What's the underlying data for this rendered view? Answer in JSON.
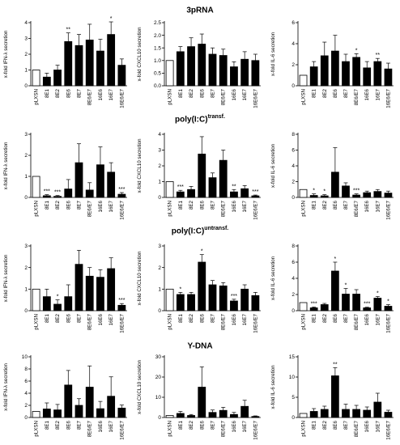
{
  "row_titles": [
    {
      "main": "3pRNA",
      "sup": ""
    },
    {
      "main": "poly(I:C)",
      "sup": "transf."
    },
    {
      "main": "poly(I:C)",
      "sup": "untransf."
    },
    {
      "main": "Y-DNA",
      "sup": ""
    }
  ],
  "chart_data": [
    {
      "type": "bar",
      "ylabel": "x-fold IFN-λ secretion",
      "categories": [
        "pLXSN",
        "8E1",
        "8E2",
        "8E6",
        "8E7",
        "8E6/E7",
        "16E6",
        "16E7",
        "16E6/E7"
      ],
      "values": [
        1.0,
        0.55,
        1.0,
        2.8,
        2.55,
        2.9,
        2.2,
        3.25,
        1.3
      ],
      "errors": [
        0,
        0.25,
        0.3,
        0.55,
        0.7,
        1.0,
        0.75,
        0.8,
        0.4
      ],
      "stars": [
        "",
        "",
        "",
        "**",
        "",
        "",
        "",
        "*",
        ""
      ],
      "ylim": [
        0,
        4
      ],
      "yticks": [
        0,
        1,
        2,
        3,
        4
      ]
    },
    {
      "type": "bar",
      "ylabel": "x-fold CXCL10 secretion",
      "categories": [
        "pLXSN",
        "8E1",
        "8E2",
        "8E6",
        "8E7",
        "8E6/E7",
        "16E6",
        "16E7",
        "16E6/E7"
      ],
      "values": [
        1.0,
        1.35,
        1.55,
        1.65,
        1.25,
        1.2,
        0.75,
        1.05,
        1.0
      ],
      "errors": [
        0,
        0.2,
        0.35,
        0.4,
        0.25,
        0.25,
        0.2,
        0.3,
        0.25
      ],
      "stars": [
        "",
        "",
        "",
        "",
        "",
        "",
        "",
        "",
        ""
      ],
      "ylim": [
        0,
        2.5
      ],
      "yticks": [
        0,
        0.5,
        1.0,
        1.5,
        2.0,
        2.5
      ]
    },
    {
      "type": "bar",
      "ylabel": "x-fold IL-6 secretion",
      "categories": [
        "pLXSN",
        "8E1",
        "8E2",
        "8E6",
        "8E7",
        "8E6/E7",
        "16E6",
        "16E7",
        "16E6/E7"
      ],
      "values": [
        1.0,
        1.8,
        2.85,
        3.3,
        2.3,
        2.7,
        1.7,
        2.3,
        1.6
      ],
      "errors": [
        0,
        0.5,
        1.3,
        1.5,
        0.7,
        0.35,
        0.6,
        0.3,
        0.55
      ],
      "stars": [
        "",
        "",
        "",
        "",
        "",
        "*",
        "",
        "**",
        ""
      ],
      "ylim": [
        0,
        6
      ],
      "yticks": [
        0,
        2,
        4,
        6
      ]
    },
    {
      "type": "bar",
      "ylabel": "x-fold IFN-λ secretion",
      "categories": [
        "pLXSN",
        "8E1",
        "8E2",
        "8E6",
        "8E7",
        "8E6/E7",
        "16E6",
        "16E7",
        "16E6/E7"
      ],
      "values": [
        1.0,
        0.08,
        0.05,
        0.4,
        1.65,
        0.35,
        1.55,
        1.2,
        0.15
      ],
      "errors": [
        0,
        0.05,
        0.04,
        0.45,
        0.9,
        0.35,
        0.85,
        0.45,
        0.08
      ],
      "stars": [
        "",
        "***",
        "***",
        "",
        "",
        "",
        "",
        "",
        "***"
      ],
      "ylim": [
        0,
        3
      ],
      "yticks": [
        0,
        1,
        2,
        3
      ]
    },
    {
      "type": "bar",
      "ylabel": "x-fold CXCL10 secretion",
      "categories": [
        "pLXSN",
        "8E1",
        "8E2",
        "8E6",
        "8E7",
        "8E6/E7",
        "16E6",
        "16E7",
        "16E6/E7"
      ],
      "values": [
        1.0,
        0.35,
        0.5,
        2.75,
        1.25,
        2.35,
        0.35,
        0.55,
        0.1
      ],
      "errors": [
        0,
        0.1,
        0.2,
        1.1,
        0.3,
        0.65,
        0.15,
        0.2,
        0.05
      ],
      "stars": [
        "",
        "***",
        "",
        "",
        "",
        "",
        "**",
        "",
        "***"
      ],
      "ylim": [
        0,
        4
      ],
      "yticks": [
        0,
        1,
        2,
        3,
        4
      ]
    },
    {
      "type": "bar",
      "ylabel": "x-fold IL-6 secretion",
      "categories": [
        "pLXSN",
        "8E1",
        "8E2",
        "8E6",
        "8E7",
        "8E6/E7",
        "16E6",
        "16E7",
        "16E6/E7"
      ],
      "values": [
        1.0,
        0.25,
        0.2,
        3.2,
        1.45,
        0.3,
        0.6,
        0.75,
        0.55
      ],
      "errors": [
        0,
        0.2,
        0.15,
        3.1,
        0.4,
        0.15,
        0.2,
        0.25,
        0.25
      ],
      "stars": [
        "",
        "*",
        "*",
        "",
        "",
        "***",
        "",
        "",
        ""
      ],
      "ylim": [
        0,
        8
      ],
      "yticks": [
        0,
        2,
        4,
        6,
        8
      ]
    },
    {
      "type": "bar",
      "ylabel": "x-fold IFN-λ secretion",
      "categories": [
        "pLXSN",
        "8E1",
        "8E2",
        "8E6",
        "8E7",
        "8E6/E7",
        "16E6",
        "16E7",
        "16E6/E7"
      ],
      "values": [
        1.0,
        0.65,
        0.3,
        0.65,
        2.15,
        1.6,
        1.55,
        1.95,
        0.25
      ],
      "errors": [
        0,
        0.35,
        0.2,
        0.55,
        0.65,
        0.4,
        0.35,
        0.5,
        0.08
      ],
      "stars": [
        "",
        "",
        "*",
        "",
        "",
        "",
        "",
        "",
        "***"
      ],
      "ylim": [
        0,
        3
      ],
      "yticks": [
        0,
        1,
        2,
        3
      ]
    },
    {
      "type": "bar",
      "ylabel": "x-fold CXCL10 secretion",
      "categories": [
        "pLXSN",
        "8E1",
        "8E2",
        "8E6",
        "8E7",
        "8E6/E7",
        "16E6",
        "16E7",
        "16E6/E7"
      ],
      "values": [
        1.0,
        0.75,
        0.75,
        2.25,
        1.2,
        1.15,
        0.45,
        1.0,
        0.7
      ],
      "errors": [
        0,
        0.1,
        0.1,
        0.35,
        0.2,
        0.15,
        0.08,
        0.2,
        0.15
      ],
      "stars": [
        "",
        "*",
        "",
        "*",
        "",
        "",
        "***",
        "",
        ""
      ],
      "ylim": [
        0,
        3
      ],
      "yticks": [
        0,
        1,
        2,
        3
      ]
    },
    {
      "type": "bar",
      "ylabel": "x-fold IL-6 secretion",
      "categories": [
        "pLXSN",
        "8E1",
        "8E2",
        "8E6",
        "8E7",
        "8E6/E7",
        "16E6",
        "16E7",
        "16E6/E7"
      ],
      "values": [
        1.0,
        0.35,
        0.75,
        4.9,
        2.05,
        2.05,
        0.35,
        1.55,
        0.55
      ],
      "errors": [
        0,
        0.1,
        0.15,
        1.1,
        0.7,
        0.55,
        0.08,
        0.2,
        0.2
      ],
      "stars": [
        "",
        "***",
        "",
        "*",
        "*",
        "",
        "***",
        "*",
        "*"
      ],
      "ylim": [
        0,
        8
      ],
      "yticks": [
        0,
        2,
        4,
        6,
        8
      ]
    },
    {
      "type": "bar",
      "ylabel": "x-fold IFN-λ secretion",
      "categories": [
        "pLXSN",
        "8E1",
        "8E2",
        "8E6",
        "8E7",
        "8E6/E7",
        "16E6",
        "16E7",
        "16E6/E7"
      ],
      "values": [
        1.0,
        1.4,
        1.25,
        5.35,
        2.0,
        5.0,
        1.45,
        3.5,
        1.55
      ],
      "errors": [
        0,
        1.0,
        0.9,
        2.4,
        1.1,
        3.5,
        1.2,
        3.2,
        0.5
      ],
      "stars": [
        "",
        "",
        "",
        "",
        "",
        "",
        "",
        "",
        ""
      ],
      "ylim": [
        0,
        10
      ],
      "yticks": [
        0,
        2,
        4,
        6,
        8,
        10
      ]
    },
    {
      "type": "bar",
      "ylabel": "x-fold CXCL10 secretion",
      "categories": [
        "pLXSN",
        "8E1",
        "8E2",
        "8E6",
        "8E7",
        "8E6/E7",
        "16E6",
        "16E7",
        "16E6/E7"
      ],
      "values": [
        1.0,
        2.0,
        1.0,
        15.0,
        2.5,
        3.5,
        1.5,
        5.5,
        0.5
      ],
      "errors": [
        0,
        1.0,
        0.5,
        10.0,
        1.2,
        1.5,
        1.0,
        3.0,
        0.3
      ],
      "stars": [
        "",
        "",
        "",
        "",
        "",
        "",
        "",
        "",
        ""
      ],
      "ylim": [
        0,
        30
      ],
      "yticks": [
        0,
        10,
        20,
        30
      ]
    },
    {
      "type": "bar",
      "ylabel": "x-fold IL-6 secretion",
      "categories": [
        "pLXSN",
        "8E1",
        "8E2",
        "8E6",
        "8E7",
        "8E6/E7",
        "16E6",
        "16E7",
        "16E6/E7"
      ],
      "values": [
        1.0,
        1.5,
        2.0,
        10.3,
        2.0,
        2.0,
        1.8,
        3.8,
        1.3
      ],
      "errors": [
        0,
        0.7,
        0.8,
        2.0,
        1.3,
        1.0,
        0.8,
        2.2,
        0.5
      ],
      "stars": [
        "",
        "",
        "",
        "**",
        "",
        "",
        "",
        "",
        ""
      ],
      "ylim": [
        0,
        15
      ],
      "yticks": [
        0,
        5,
        10,
        15
      ]
    }
  ]
}
